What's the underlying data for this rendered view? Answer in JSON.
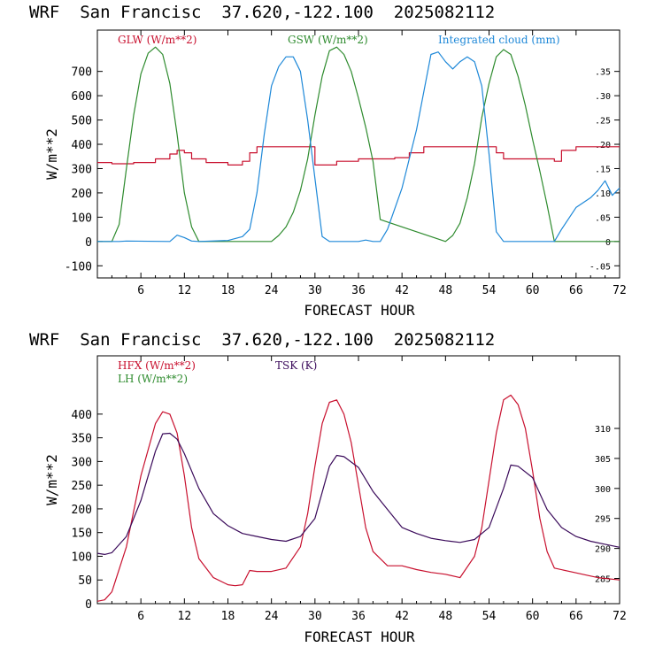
{
  "chart_data": [
    {
      "type": "line",
      "title": "WRF  San Francisc  37.620,-122.100  2025082112",
      "xlabel": "FORECAST HOUR",
      "ylabel": "W/m**2",
      "xlim": [
        0,
        72
      ],
      "ylim": [
        -150,
        870
      ],
      "x_ticks": [
        6,
        12,
        18,
        24,
        30,
        36,
        42,
        48,
        54,
        60,
        66,
        72
      ],
      "y_ticks": [
        -100,
        0,
        100,
        200,
        300,
        400,
        500,
        600,
        700
      ],
      "y2lim": [
        -0.075,
        0.435
      ],
      "y2_ticks": [
        -0.05,
        0,
        0.05,
        0.1,
        0.15,
        0.2,
        0.25,
        0.3,
        0.35
      ],
      "y2_tick_labels": [
        "-.05",
        "0",
        ".05",
        ".10",
        ".15",
        ".20",
        ".25",
        ".30",
        ".35"
      ],
      "grid": false,
      "legend": "top",
      "colors": {
        "GLW": "#c8102e",
        "GSW": "#2e8b2e",
        "CLOUD": "#1e88d8"
      },
      "series": [
        {
          "name": "GLW (W/m**2)",
          "axis": "left",
          "step": true,
          "x": [
            0,
            2,
            5,
            8,
            10,
            11,
            12,
            13,
            15,
            18,
            20,
            21,
            22,
            29,
            30,
            33,
            36,
            39,
            41,
            43,
            45,
            54,
            55,
            56,
            63,
            64,
            66,
            72
          ],
          "y": [
            325,
            320,
            325,
            340,
            360,
            375,
            365,
            340,
            325,
            315,
            330,
            365,
            390,
            390,
            315,
            330,
            340,
            340,
            345,
            365,
            390,
            390,
            365,
            340,
            330,
            375,
            390,
            390
          ]
        },
        {
          "name": "GSW (W/m**2)",
          "axis": "left",
          "x": [
            0,
            2,
            3,
            4,
            5,
            6,
            7,
            8,
            9,
            10,
            11,
            12,
            13,
            14,
            24,
            25,
            26,
            27,
            28,
            29,
            30,
            31,
            32,
            33,
            34,
            35,
            36,
            37,
            38,
            39,
            48,
            49,
            50,
            51,
            52,
            53,
            54,
            55,
            56,
            57,
            58,
            59,
            60,
            61,
            62,
            63,
            72
          ],
          "y": [
            0,
            0,
            70,
            300,
            520,
            690,
            775,
            800,
            770,
            650,
            440,
            200,
            60,
            0,
            0,
            25,
            60,
            120,
            210,
            340,
            520,
            680,
            785,
            800,
            770,
            700,
            590,
            470,
            330,
            90,
            0,
            25,
            75,
            180,
            320,
            510,
            650,
            760,
            790,
            770,
            680,
            560,
            420,
            290,
            150,
            0,
            0
          ]
        },
        {
          "name": "Integrated cloud (mm)",
          "axis": "right",
          "x": [
            0,
            3,
            4,
            10,
            11,
            12,
            13,
            14,
            18,
            20,
            21,
            22,
            23,
            24,
            25,
            26,
            27,
            28,
            29,
            30,
            31,
            32,
            36,
            37,
            38,
            39,
            40,
            42,
            44,
            46,
            47,
            48,
            49,
            50,
            51,
            52,
            53,
            54,
            55,
            56,
            63,
            64,
            66,
            67,
            68,
            69,
            70,
            71,
            72
          ],
          "y": [
            0,
            0,
            0.001,
            0,
            0.013,
            0.008,
            0.001,
            0,
            0.002,
            0.01,
            0.025,
            0.1,
            0.22,
            0.32,
            0.36,
            0.38,
            0.38,
            0.35,
            0.25,
            0.13,
            0.01,
            0,
            0,
            0.003,
            0,
            0,
            0.025,
            0.11,
            0.23,
            0.385,
            0.39,
            0.37,
            0.355,
            0.37,
            0.38,
            0.37,
            0.32,
            0.18,
            0.02,
            0,
            0,
            0.025,
            0.07,
            0.08,
            0.09,
            0.105,
            0.125,
            0.095,
            0.11
          ]
        }
      ]
    },
    {
      "type": "line",
      "title": "WRF  San Francisc  37.620,-122.100  2025082112",
      "xlabel": "FORECAST HOUR",
      "ylabel": "W/m**2",
      "xlim": [
        0,
        72
      ],
      "ylim": [
        0,
        523
      ],
      "x_ticks": [
        6,
        12,
        18,
        24,
        30,
        36,
        42,
        48,
        54,
        60,
        66,
        72
      ],
      "y_ticks": [
        0,
        50,
        100,
        150,
        200,
        250,
        300,
        350,
        400
      ],
      "y2lim": [
        280.8,
        322.1
      ],
      "y2_ticks": [
        285,
        290,
        295,
        300,
        305,
        310
      ],
      "grid": false,
      "legend": "top-left",
      "colors": {
        "HFX": "#c8102e",
        "LH": "#2e8b2e",
        "TSK": "#3a0a5a"
      },
      "series": [
        {
          "name": "HFX (W/m**2)",
          "axis": "left",
          "x": [
            0,
            1,
            2,
            4,
            6,
            8,
            9,
            10,
            11,
            12,
            13,
            14,
            16,
            18,
            19,
            20,
            21,
            22,
            24,
            26,
            28,
            29,
            30,
            31,
            32,
            33,
            34,
            35,
            36,
            37,
            38,
            40,
            41,
            42,
            44,
            46,
            48,
            50,
            52,
            53,
            54,
            55,
            56,
            57,
            58,
            59,
            60,
            61,
            62,
            63,
            66,
            69,
            72
          ],
          "y": [
            5,
            8,
            25,
            120,
            270,
            380,
            405,
            400,
            360,
            270,
            160,
            95,
            55,
            40,
            38,
            40,
            70,
            68,
            68,
            75,
            120,
            190,
            290,
            380,
            425,
            430,
            400,
            340,
            250,
            160,
            110,
            80,
            80,
            80,
            72,
            66,
            62,
            55,
            100,
            160,
            260,
            360,
            430,
            440,
            420,
            370,
            280,
            180,
            110,
            75,
            65,
            55,
            50
          ]
        },
        {
          "name": "LH (W/m**2)",
          "axis": "left",
          "x": [],
          "y": []
        },
        {
          "name": "TSK (K)",
          "axis": "right",
          "x": [
            0,
            1,
            2,
            4,
            6,
            8,
            9,
            10,
            11,
            12,
            14,
            16,
            18,
            20,
            22,
            24,
            26,
            28,
            30,
            32,
            33,
            34,
            36,
            38,
            40,
            42,
            44,
            46,
            48,
            50,
            52,
            54,
            56,
            57,
            58,
            60,
            62,
            64,
            66,
            68,
            70,
            72
          ],
          "y": [
            289.2,
            289,
            289.3,
            292,
            298,
            306.2,
            309.1,
            309.2,
            308.2,
            305.8,
            300,
            295.8,
            293.8,
            292.5,
            292,
            291.5,
            291.2,
            292,
            295,
            303.7,
            305.5,
            305.3,
            303.5,
            299.5,
            296.5,
            293.5,
            292.5,
            291.7,
            291.3,
            291,
            291.5,
            293.5,
            300,
            303.9,
            303.7,
            301.8,
            296.5,
            293.5,
            292,
            291.2,
            290.7,
            290.2
          ]
        }
      ]
    }
  ]
}
